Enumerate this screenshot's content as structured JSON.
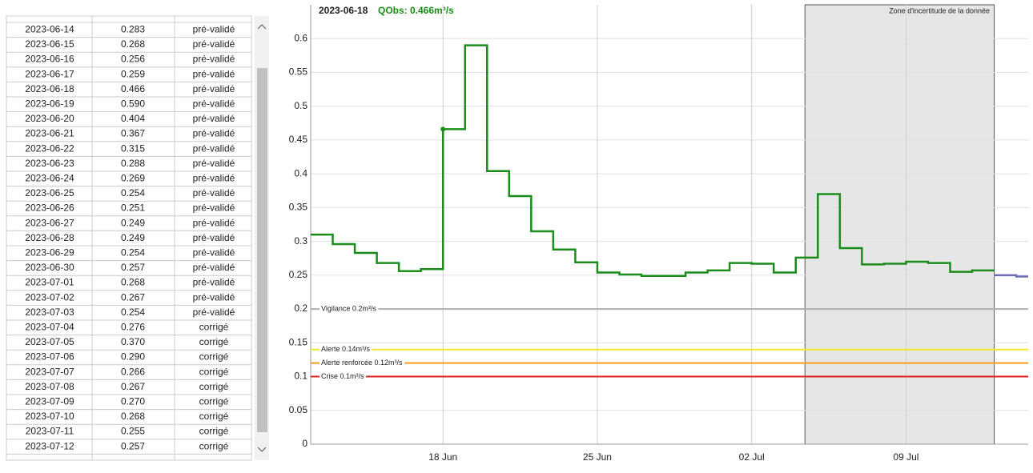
{
  "table": {
    "rows": [
      [
        "2023-06-14",
        "0.283",
        "pré-validé"
      ],
      [
        "2023-06-15",
        "0.268",
        "pré-validé"
      ],
      [
        "2023-06-16",
        "0.256",
        "pré-validé"
      ],
      [
        "2023-06-17",
        "0.259",
        "pré-validé"
      ],
      [
        "2023-06-18",
        "0.466",
        "pré-validé"
      ],
      [
        "2023-06-19",
        "0.590",
        "pré-validé"
      ],
      [
        "2023-06-20",
        "0.404",
        "pré-validé"
      ],
      [
        "2023-06-21",
        "0.367",
        "pré-validé"
      ],
      [
        "2023-06-22",
        "0.315",
        "pré-validé"
      ],
      [
        "2023-06-23",
        "0.288",
        "pré-validé"
      ],
      [
        "2023-06-24",
        "0.269",
        "pré-validé"
      ],
      [
        "2023-06-25",
        "0.254",
        "pré-validé"
      ],
      [
        "2023-06-26",
        "0.251",
        "pré-validé"
      ],
      [
        "2023-06-27",
        "0.249",
        "pré-validé"
      ],
      [
        "2023-06-28",
        "0.249",
        "pré-validé"
      ],
      [
        "2023-06-29",
        "0.254",
        "pré-validé"
      ],
      [
        "2023-06-30",
        "0.257",
        "pré-validé"
      ],
      [
        "2023-07-01",
        "0.268",
        "pré-validé"
      ],
      [
        "2023-07-02",
        "0.267",
        "pré-validé"
      ],
      [
        "2023-07-03",
        "0.254",
        "pré-validé"
      ],
      [
        "2023-07-04",
        "0.276",
        "corrigé"
      ],
      [
        "2023-07-05",
        "0.370",
        "corrigé"
      ],
      [
        "2023-07-06",
        "0.290",
        "corrigé"
      ],
      [
        "2023-07-07",
        "0.266",
        "corrigé"
      ],
      [
        "2023-07-08",
        "0.267",
        "corrigé"
      ],
      [
        "2023-07-09",
        "0.270",
        "corrigé"
      ],
      [
        "2023-07-10",
        "0.268",
        "corrigé"
      ],
      [
        "2023-07-11",
        "0.255",
        "corrigé"
      ],
      [
        "2023-07-12",
        "0.257",
        "corrigé"
      ]
    ]
  },
  "chart_data": {
    "type": "line",
    "step": true,
    "title": {
      "date": "2023-06-18",
      "value": "QObs: 0.466m³/s"
    },
    "annotation": "Zone d'incertitude de la donnée",
    "shaded_range": [
      "2023-07-04T10:00",
      "2023-07-13T00:00"
    ],
    "x": [
      "2023-06-12",
      "2023-06-13",
      "2023-06-14",
      "2023-06-15",
      "2023-06-16",
      "2023-06-17",
      "2023-06-18",
      "2023-06-19",
      "2023-06-20",
      "2023-06-21",
      "2023-06-22",
      "2023-06-23",
      "2023-06-24",
      "2023-06-25",
      "2023-06-26",
      "2023-06-27",
      "2023-06-28",
      "2023-06-29",
      "2023-06-30",
      "2023-07-01",
      "2023-07-02",
      "2023-07-03",
      "2023-07-04",
      "2023-07-05",
      "2023-07-06",
      "2023-07-07",
      "2023-07-08",
      "2023-07-09",
      "2023-07-10",
      "2023-07-11",
      "2023-07-12",
      "2023-07-13",
      "2023-07-14"
    ],
    "series": [
      {
        "color": "#1a8c1a",
        "values": [
          0.31,
          0.296,
          0.283,
          0.268,
          0.256,
          0.259,
          0.466,
          0.59,
          0.404,
          0.367,
          0.315,
          0.288,
          0.269,
          0.254,
          0.251,
          0.249,
          0.249,
          0.254,
          0.257,
          0.268,
          0.267,
          0.254,
          0.276,
          0.37,
          0.29,
          0.266,
          0.267,
          0.27,
          0.268,
          0.255,
          0.257,
          null,
          null
        ]
      },
      {
        "color": "#6b6bb8",
        "values": [
          null,
          null,
          null,
          null,
          null,
          null,
          null,
          null,
          null,
          null,
          null,
          null,
          null,
          null,
          null,
          null,
          null,
          null,
          null,
          null,
          null,
          null,
          null,
          null,
          null,
          null,
          null,
          null,
          null,
          null,
          null,
          0.25,
          0.248
        ]
      }
    ],
    "xlim": [
      "2023-06-12T00:00",
      "2023-07-14T13:00"
    ],
    "xticks": [
      {
        "value": "2023-06-18",
        "label": "18 Jun"
      },
      {
        "value": "2023-06-25",
        "label": "25 Jun"
      },
      {
        "value": "2023-07-02",
        "label": "02 Jul"
      },
      {
        "value": "2023-07-09",
        "label": "09 Jul"
      }
    ],
    "ylim": [
      0,
      0.65
    ],
    "yticks": [
      0,
      0.05,
      0.1,
      0.15,
      0.2,
      0.25,
      0.3,
      0.35,
      0.4,
      0.45,
      0.5,
      0.55,
      0.6
    ],
    "thresholds": [
      {
        "label": "Vigilance 0.2m³/s",
        "value": 0.2,
        "color": "#b0b0b0"
      },
      {
        "label": "Alerte 0.14m³/s",
        "value": 0.14,
        "color": "#f2e830"
      },
      {
        "label": "Alerte renforcée 0.12m³/s",
        "value": 0.12,
        "color": "#f5a020"
      },
      {
        "label": "Crise 0.1m³/s",
        "value": 0.1,
        "color": "#e02020"
      }
    ]
  }
}
